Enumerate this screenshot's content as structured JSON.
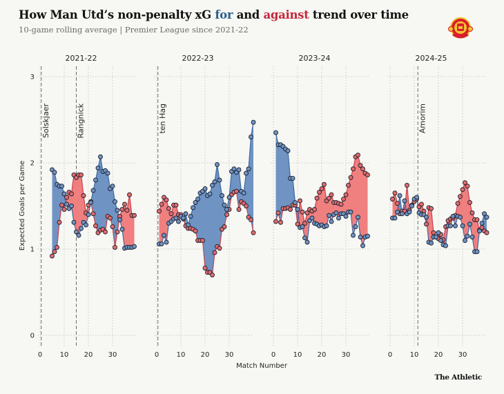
{
  "header": {
    "title_prefix": "How Man Utd’s non-penalty xG ",
    "title_for": "for",
    "title_middle": " and ",
    "title_against": "against",
    "title_suffix": " trend over time",
    "subtitle": "10-game rolling average | Premier League since 2021-22",
    "logo": "manchester-united-crest-icon"
  },
  "footer": {
    "brand": "The Athletic"
  },
  "colors": {
    "for_line": "#3d6aa2",
    "for_fill": "#6f93c3",
    "for_point": "#6f93c3",
    "against_line": "#c8414c",
    "against_fill": "#f07f7f",
    "against_point": "#e56a6a",
    "point_stroke": "#1d2433"
  },
  "chart_data": {
    "type": "line",
    "title": "How Man Utd’s non-penalty xG for and against trend over time",
    "subtitle": "10-game rolling average | Premier League since 2021-22",
    "xlabel": "Match Number",
    "ylabel": "Expected Goals per Game",
    "ylim": [
      0,
      3
    ],
    "yticks": [
      0,
      1,
      2,
      3
    ],
    "xlim": [
      -1,
      40
    ],
    "xticks": [
      0,
      10,
      20,
      30
    ],
    "grid": true,
    "legend": "in-title (for = blue, against = red)",
    "panels": [
      {
        "season": "2021-22",
        "start_match": 5,
        "managers": [
          {
            "name": "Solskjaer",
            "match": 0.5
          },
          {
            "name": "Rangnick",
            "match": 15
          }
        ],
        "series": [
          {
            "name": "for",
            "values": [
              1.92,
              1.89,
              1.75,
              1.73,
              1.73,
              1.64,
              1.52,
              1.47,
              1.5,
              1.31,
              1.2,
              1.16,
              1.24,
              1.31,
              1.28,
              1.4,
              1.54,
              1.68,
              1.8,
              1.94,
              2.07,
              1.9,
              1.91,
              1.88,
              1.7,
              1.73,
              1.55,
              1.45,
              1.34,
              1.23,
              1.01,
              1.02,
              1.02,
              1.02,
              1.03
            ]
          },
          {
            "name": "against",
            "values": [
              0.92,
              0.97,
              1.02,
              1.31,
              1.51,
              1.46,
              1.6,
              1.66,
              1.64,
              1.86,
              1.83,
              1.86,
              1.86,
              1.62,
              1.42,
              1.51,
              1.55,
              1.41,
              1.27,
              1.19,
              1.22,
              1.23,
              1.2,
              1.38,
              1.36,
              1.26,
              1.02,
              1.2,
              1.38,
              1.46,
              1.52,
              1.45,
              1.63,
              1.39,
              1.39
            ]
          }
        ]
      },
      {
        "season": "2022-23",
        "start_match": 1,
        "managers": [
          {
            "name": "ten Hag",
            "match": 0.5
          }
        ],
        "series": [
          {
            "name": "for",
            "values": [
              1.06,
              1.06,
              1.16,
              1.08,
              1.3,
              1.32,
              1.35,
              1.36,
              1.32,
              1.38,
              1.36,
              1.41,
              1.28,
              1.38,
              1.48,
              1.54,
              1.58,
              1.65,
              1.67,
              1.7,
              1.62,
              1.64,
              1.74,
              1.78,
              1.98,
              1.8,
              1.62,
              1.51,
              1.46,
              1.6,
              1.9,
              1.93,
              1.89,
              1.92,
              1.67,
              1.65,
              1.88,
              1.93,
              2.3,
              2.47
            ]
          },
          {
            "name": "against",
            "values": [
              1.44,
              1.52,
              1.6,
              1.57,
              1.47,
              1.41,
              1.51,
              1.51,
              1.4,
              1.4,
              1.35,
              1.27,
              1.24,
              1.24,
              1.23,
              1.21,
              1.1,
              1.1,
              1.1,
              0.78,
              0.73,
              0.73,
              0.7,
              0.96,
              1.03,
              1.01,
              1.23,
              1.26,
              1.4,
              1.46,
              1.63,
              1.66,
              1.67,
              1.46,
              1.55,
              1.53,
              1.5,
              1.37,
              1.34,
              1.19,
              1.2
            ]
          }
        ]
      },
      {
        "season": "2023-24",
        "start_match": 1,
        "managers": [],
        "series": [
          {
            "name": "for",
            "values": [
              2.35,
              2.21,
              2.21,
              2.19,
              2.16,
              2.14,
              1.82,
              1.82,
              1.54,
              1.46,
              1.25,
              1.26,
              1.13,
              1.08,
              1.33,
              1.36,
              1.3,
              1.29,
              1.27,
              1.28,
              1.26,
              1.27,
              1.39,
              1.32,
              1.4,
              1.42,
              1.36,
              1.41,
              1.41,
              1.38,
              1.43,
              1.43,
              1.16,
              1.26,
              1.37,
              1.14,
              1.04,
              1.14,
              1.15
            ]
          },
          {
            "name": "against",
            "values": [
              1.32,
              1.42,
              1.31,
              1.47,
              1.47,
              1.48,
              1.46,
              1.51,
              1.51,
              1.29,
              1.56,
              1.43,
              1.3,
              1.42,
              1.46,
              1.44,
              1.46,
              1.59,
              1.66,
              1.7,
              1.75,
              1.56,
              1.59,
              1.63,
              1.54,
              1.54,
              1.53,
              1.52,
              1.58,
              1.63,
              1.74,
              1.83,
              1.93,
              2.07,
              2.09,
              1.97,
              1.93,
              1.88,
              1.86,
              1.92,
              1.91
            ]
          }
        ]
      },
      {
        "season": "2024-25",
        "start_match": 1,
        "managers": [
          {
            "name": "Amorim",
            "match": 11.5
          }
        ],
        "series": [
          {
            "name": "for",
            "values": [
              1.36,
              1.36,
              1.43,
              1.62,
              1.41,
              1.56,
              1.41,
              1.43,
              1.5,
              1.58,
              1.6,
              1.42,
              1.4,
              1.4,
              1.37,
              1.08,
              1.07,
              1.14,
              1.14,
              1.19,
              1.1,
              1.05,
              1.04,
              1.27,
              1.27,
              1.38,
              1.27,
              1.38,
              1.37,
              1.27,
              1.1,
              1.15,
              1.29,
              1.14,
              0.97,
              0.97,
              1.21,
              1.3,
              1.41,
              1.37
            ]
          },
          {
            "name": "against",
            "values": [
              1.58,
              1.65,
              1.53,
              1.41,
              1.44,
              1.44,
              1.74,
              1.45,
              1.51,
              1.55,
              1.58,
              1.49,
              1.52,
              1.44,
              1.29,
              1.48,
              1.47,
              1.19,
              1.14,
              1.12,
              1.17,
              1.11,
              1.26,
              1.33,
              1.35,
              1.36,
              1.39,
              1.53,
              1.61,
              1.69,
              1.77,
              1.73,
              1.54,
              1.42,
              1.34,
              1.34,
              1.22,
              1.25,
              1.21,
              1.19
            ]
          }
        ]
      }
    ]
  }
}
